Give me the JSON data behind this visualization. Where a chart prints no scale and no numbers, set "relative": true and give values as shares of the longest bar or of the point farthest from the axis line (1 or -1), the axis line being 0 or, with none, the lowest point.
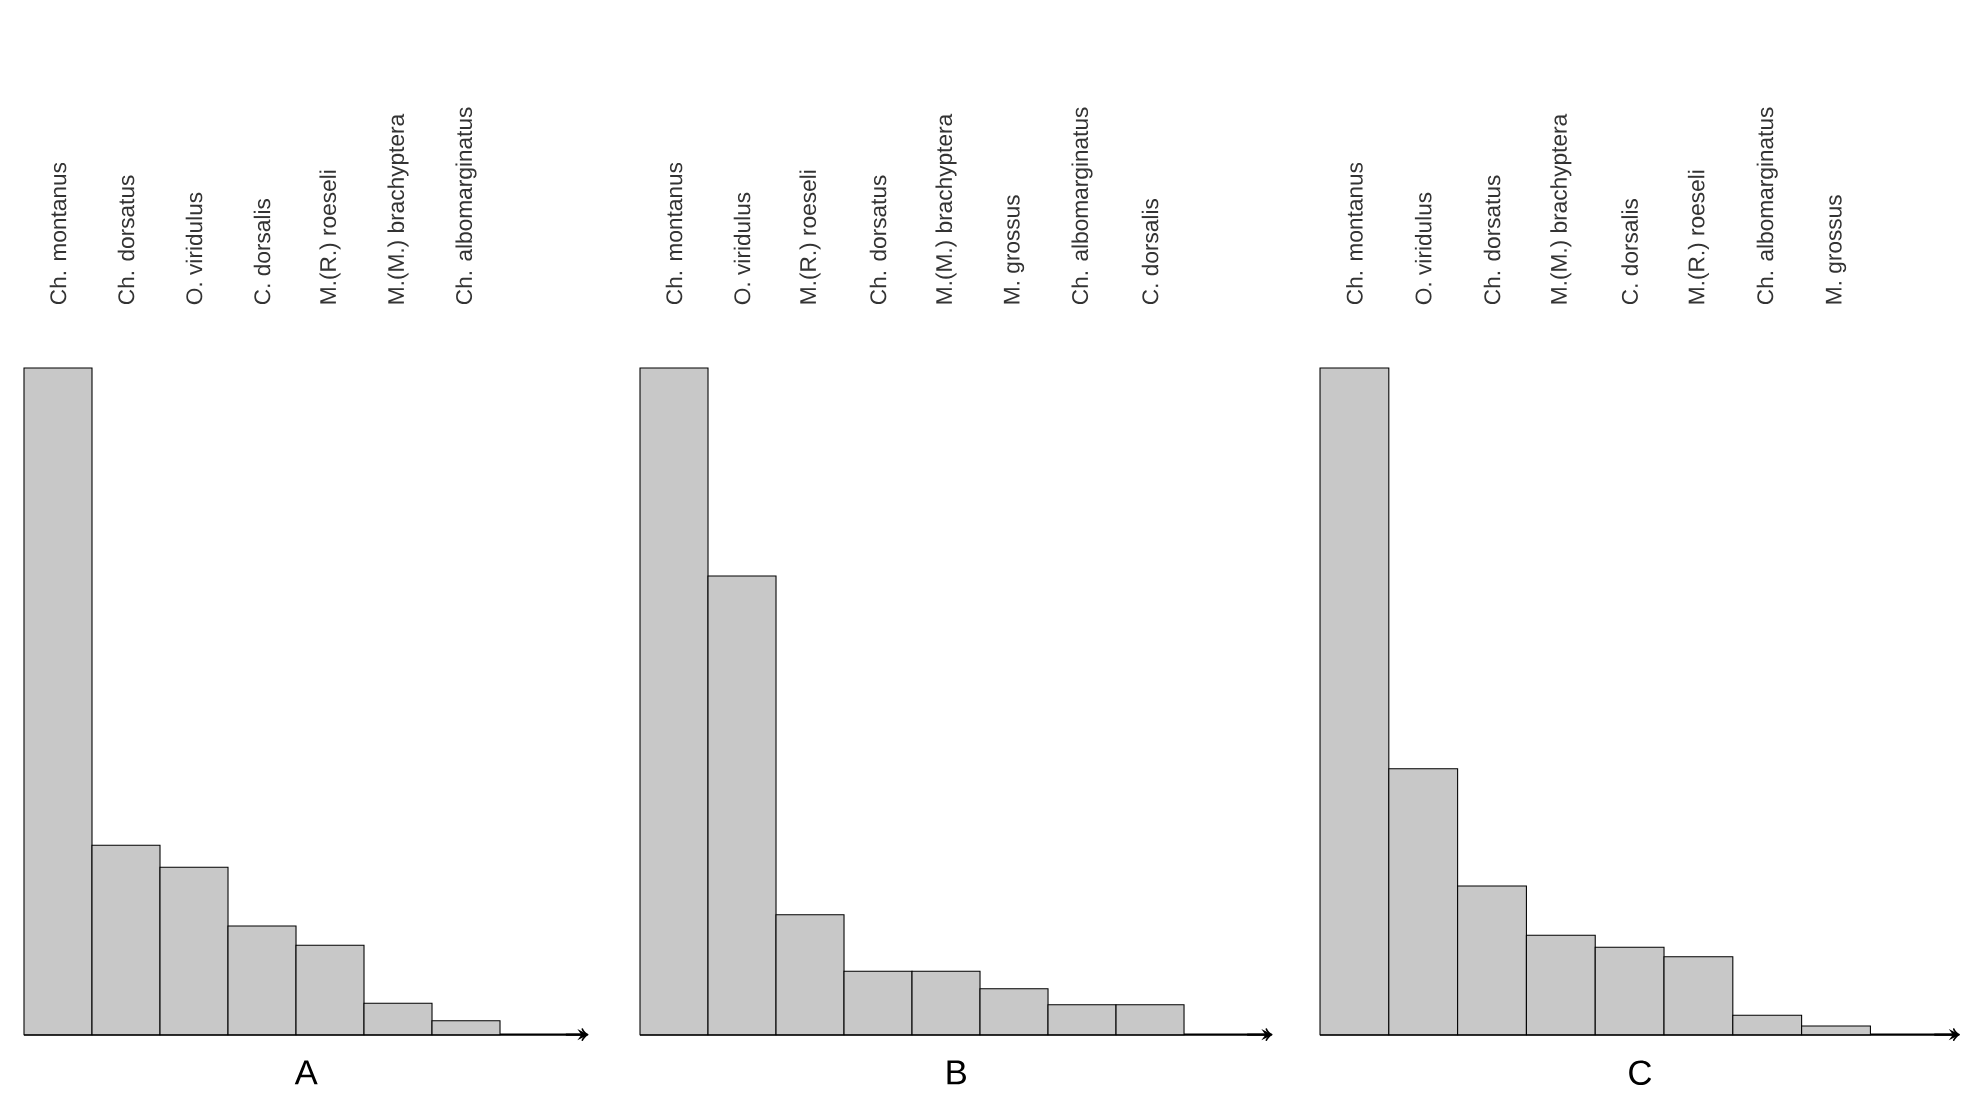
{
  "chart_data": [
    {
      "type": "bar",
      "relative": true,
      "xlabel": "A",
      "color": "#c8c8c8",
      "categories": [
        "Ch. montanus",
        "Ch. dorsatus",
        "O. viridulus",
        "C. dorsalis",
        "M.(R.) roeseli",
        "M.(M.) brachyptera",
        "Ch. albomarginatus"
      ],
      "values": [
        1,
        0.284,
        0.251,
        0.163,
        0.134,
        0.047,
        0.021
      ]
    },
    {
      "type": "bar",
      "relative": true,
      "xlabel": "B",
      "color": "#c8c8c8",
      "categories": [
        "Ch. montanus",
        "O. viridulus",
        "M.(R.) roeseli",
        "Ch. dorsatus",
        "M.(M.) brachyptera",
        "M. grossus",
        "Ch. albomarginatus",
        "C. dorsalis"
      ],
      "values": [
        1,
        0.688,
        0.18,
        0.095,
        0.095,
        0.069,
        0.045,
        0.045
      ]
    },
    {
      "type": "bar",
      "relative": true,
      "xlabel": "C",
      "color": "#c8c8c8",
      "categories": [
        "Ch. montanus",
        "O. viridulus",
        "Ch. dorsatus",
        "M.(M.) brachyptera",
        "C. dorsalis",
        "M.(R.) roeseli",
        "Ch. albomarginatus",
        "M. grossus"
      ],
      "values": [
        1,
        0.399,
        0.223,
        0.149,
        0.131,
        0.117,
        0.029,
        0.013
      ]
    }
  ]
}
